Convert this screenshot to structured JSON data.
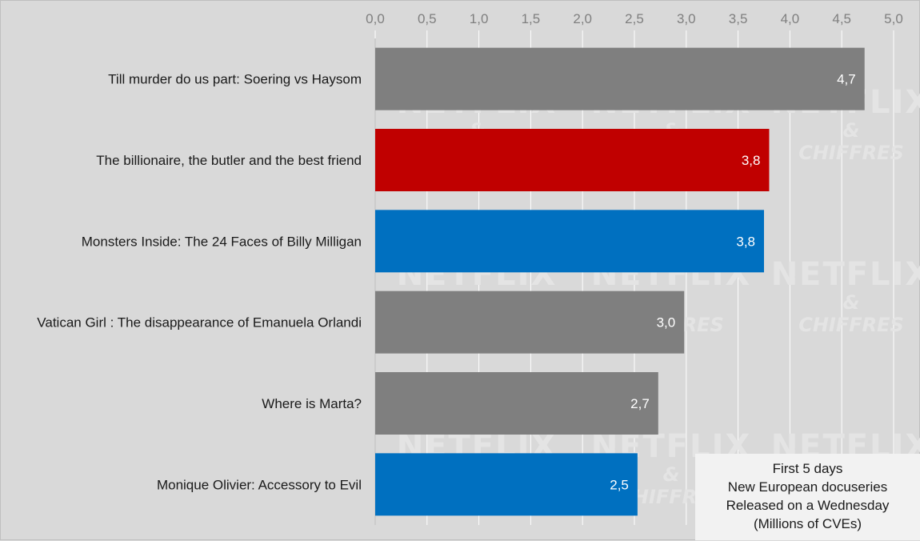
{
  "chart_data": {
    "type": "bar",
    "orientation": "horizontal",
    "categories": [
      "Till murder do us part: Soering vs Haysom",
      "The billionaire, the butler and the best friend",
      "Monsters Inside: The 24 Faces of Billy Milligan",
      "Vatican Girl : The disappearance of Emanuela Orlandi",
      "Where is Marta?",
      "Monique Olivier: Accessory to Evil"
    ],
    "values": [
      4.72,
      3.8,
      3.75,
      2.98,
      2.73,
      2.53
    ],
    "value_labels": [
      "4,7",
      "3,8",
      "3,8",
      "3,0",
      "2,7",
      "2,5"
    ],
    "bar_colors": [
      "#7f7f7f",
      "#c00000",
      "#0070c0",
      "#7f7f7f",
      "#7f7f7f",
      "#0070c0"
    ],
    "xlim": [
      0,
      5
    ],
    "x_ticks": [
      "0,0",
      "0,5",
      "1,0",
      "1,5",
      "2,0",
      "2,5",
      "3,0",
      "3,5",
      "4,0",
      "4,5",
      "5,0"
    ],
    "x_axis_position": "top",
    "grid": true,
    "title": "",
    "xlabel": "",
    "ylabel": "",
    "note": [
      "First 5 days",
      "New European docuseries",
      "Released on a Wednesday",
      "(Millions of CVEs)"
    ],
    "note_placement": "bottom-right"
  },
  "watermark": {
    "line1": "NETFLIX",
    "line2": "&",
    "line3": "CHIFFRES"
  },
  "colors": {
    "background": "#d9d9d9",
    "gridline": "#ffffff",
    "tick_text": "#7f7f7f"
  }
}
